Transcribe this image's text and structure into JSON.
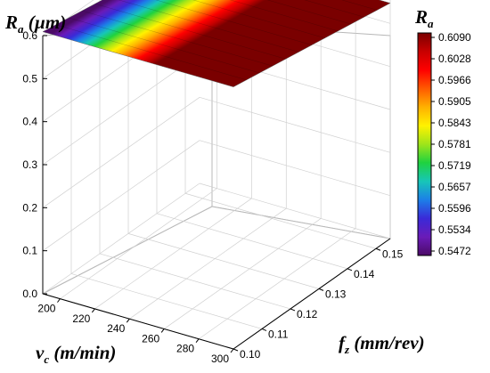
{
  "chart_data": {
    "type": "surface3d",
    "z_title_main": "R",
    "z_title_sub": "a",
    "z_title_unit": " (µm)",
    "x_title_main": "v",
    "x_title_sub": "c",
    "x_title_unit": " (m/min)",
    "y_title_main": "f",
    "y_title_sub": "z",
    "y_title_unit": " (mm/rev)",
    "colorbar_title_main": "R",
    "colorbar_title_sub": "a",
    "z_ticks": [
      "0.0",
      "0.1",
      "0.2",
      "0.3",
      "0.4",
      "0.5",
      "0.6"
    ],
    "x_ticks": [
      "200",
      "220",
      "240",
      "260",
      "280",
      "300"
    ],
    "y_ticks": [
      "0.10",
      "0.11",
      "0.12",
      "0.13",
      "0.14",
      "0.15"
    ],
    "colorbar_ticks": [
      "0.6090",
      "0.6028",
      "0.5966",
      "0.5905",
      "0.5843",
      "0.5781",
      "0.5719",
      "0.5657",
      "0.5596",
      "0.5534",
      "0.5472"
    ],
    "x_range": [
      190,
      300
    ],
    "y_range": [
      0.1,
      0.155
    ],
    "z_range": [
      0.0,
      0.6
    ],
    "colorbar_range": [
      0.5472,
      0.609
    ],
    "surface_corners": [
      {
        "vc": 190,
        "fz": 0.155,
        "ra": 0.5472
      },
      {
        "vc": 190,
        "fz": 0.1,
        "ra": 0.609
      },
      {
        "vc": 300,
        "fz": 0.1,
        "ra": 0.609
      },
      {
        "vc": 300,
        "fz": 0.155,
        "ra": 0.5472
      }
    ],
    "colormap": [
      "#4b0a66",
      "#6a1bb8",
      "#3a2ad8",
      "#1c7fe8",
      "#17c6b8",
      "#1fd23f",
      "#9fe51a",
      "#fff200",
      "#ffb000",
      "#ff5a00",
      "#ff0000",
      "#c80000",
      "#7a0000"
    ],
    "grid": true
  }
}
